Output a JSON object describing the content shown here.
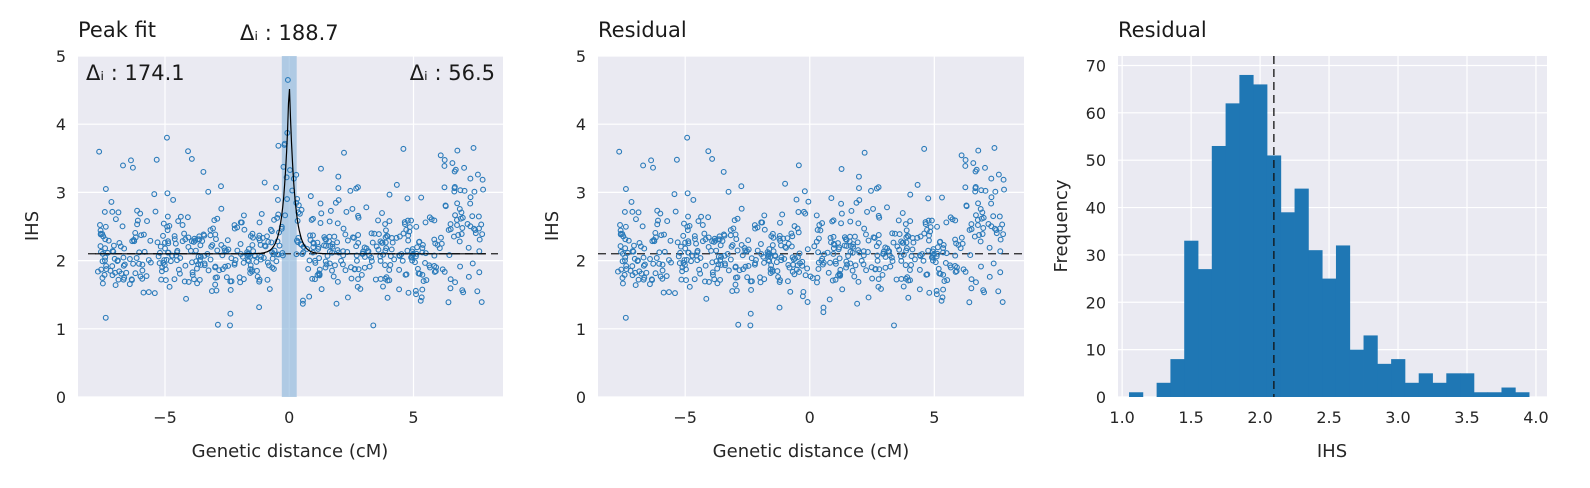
{
  "chart_data": [
    {
      "type": "scatter",
      "title": "Peak fit",
      "xlabel": "Genetic distance (cM)",
      "ylabel": "IHS",
      "xlim": [
        -8.5,
        8.6
      ],
      "ylim": [
        0,
        5
      ],
      "xticks": [
        -5,
        0,
        5
      ],
      "yticks": [
        0,
        1,
        2,
        3,
        4,
        5
      ],
      "grid": true,
      "baseline": 2.1,
      "peak_center": 0,
      "peak_band": [
        -0.3,
        0.3
      ],
      "annotations": [
        {
          "text": "Δᵢ : 174.1",
          "position": "top-left"
        },
        {
          "text": "Δᵢ : 188.7",
          "position": "above-peak"
        },
        {
          "text": "Δᵢ : 56.5",
          "position": "top-right"
        }
      ],
      "point_count": 640,
      "series": [
        {
          "label_note": "observed points",
          "style": "hollow circles"
        },
        {
          "label_note": "fitted peak curve",
          "style": "black line"
        }
      ]
    },
    {
      "type": "scatter",
      "title": "Residual",
      "xlabel": "Genetic distance (cM)",
      "ylabel": "IHS",
      "xlim": [
        -8.5,
        8.6
      ],
      "ylim": [
        0,
        5
      ],
      "xticks": [
        -5,
        0,
        5
      ],
      "yticks": [
        0,
        1,
        2,
        3,
        4,
        5
      ],
      "grid": true,
      "baseline": 2.1,
      "point_count": 640
    },
    {
      "type": "bar",
      "title": "Residual",
      "xlabel": "IHS",
      "ylabel": "Frequency",
      "xlim": [
        0.97,
        4.08
      ],
      "ylim": [
        0,
        72
      ],
      "xticks": [
        1.0,
        1.5,
        2.0,
        2.5,
        3.0,
        3.5,
        4.0
      ],
      "yticks": [
        0,
        10,
        20,
        30,
        40,
        50,
        60,
        70
      ],
      "grid": true,
      "vline": 2.1,
      "bin_edges": [
        1.05,
        1.15,
        1.25,
        1.35,
        1.45,
        1.55,
        1.65,
        1.75,
        1.85,
        1.95,
        2.05,
        2.15,
        2.25,
        2.35,
        2.45,
        2.55,
        2.65,
        2.75,
        2.85,
        2.95,
        3.05,
        3.15,
        3.25,
        3.35,
        3.45,
        3.55,
        3.65,
        3.75,
        3.85,
        3.95
      ],
      "values": [
        1,
        0,
        3,
        8,
        33,
        27,
        53,
        62,
        68,
        66,
        51,
        39,
        44,
        31,
        25,
        32,
        10,
        13,
        7,
        8,
        3,
        5,
        3,
        5,
        5,
        1,
        1,
        2,
        1
      ]
    }
  ],
  "colors": {
    "point": "#2b7bba",
    "bar": "#1f77b4",
    "band": "#8fb8dc",
    "panel": "#eaeaf2",
    "grid": "#ffffff",
    "line": "#000000"
  }
}
